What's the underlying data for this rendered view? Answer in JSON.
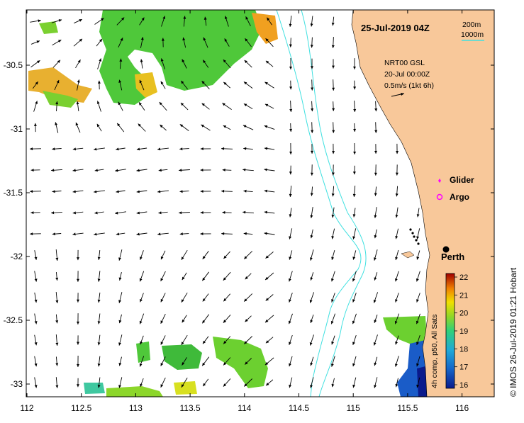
{
  "map": {
    "title": "25-Jul-2019 04Z",
    "legend_depth": {
      "line1": "200m",
      "line2": "1000m",
      "color": "#40e0e0"
    },
    "current_note": {
      "line1": "NRT00 GSL",
      "line2": "20-Jul 00:00Z",
      "line3": "0.5m/s (1kt 6h)"
    },
    "markers": {
      "glider": "Glider",
      "argo": "Argo",
      "city": "Perth",
      "marker_color": "#ff00ff"
    },
    "credit": "© IMOS 26-Jul-2019 01:21 Hobart",
    "colorbar": {
      "label": "4h comp, p50, All Sats",
      "ticks": [
        "22",
        "21",
        "20",
        "19",
        "18",
        "17",
        "16"
      ],
      "min": 16,
      "max": 22
    },
    "x_axis": {
      "ticks": [
        "112",
        "112.5",
        "113",
        "113.5",
        "114",
        "114.5",
        "115",
        "115.5",
        "116"
      ]
    },
    "y_axis": {
      "ticks": [
        "-30.5",
        "-31",
        "-31.5",
        "-32",
        "-32.5",
        "-33"
      ]
    },
    "colors": {
      "land": "#f8c89a",
      "isobath": "#40e0e0",
      "frame": "#000000"
    }
  }
}
